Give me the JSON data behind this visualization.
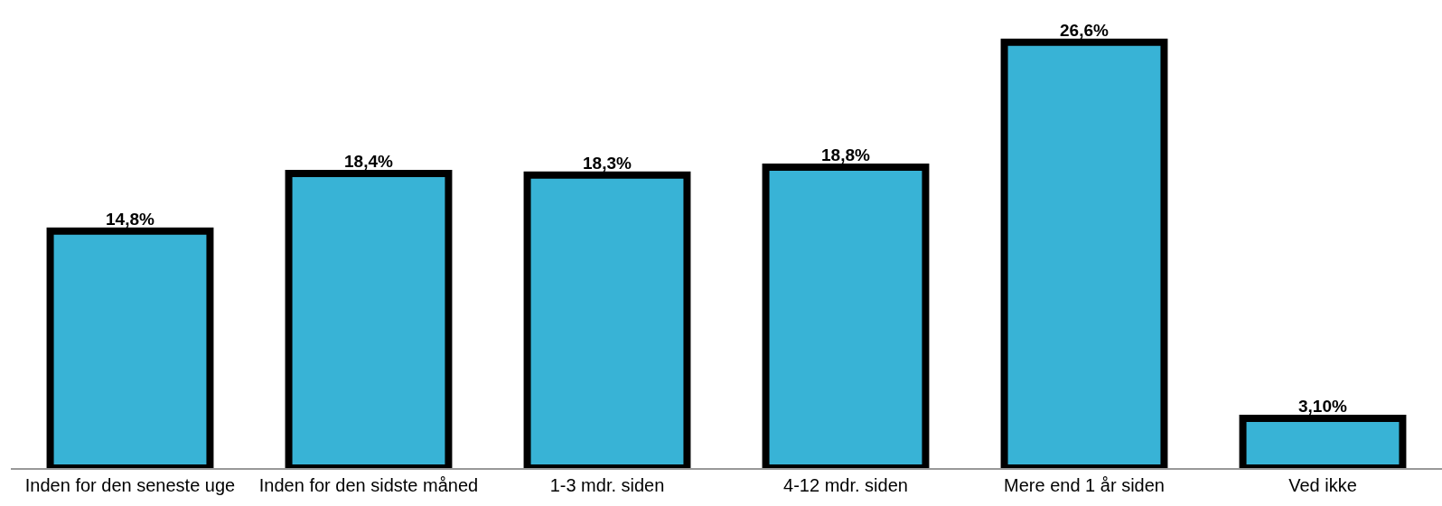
{
  "chart_data": {
    "type": "bar",
    "categories": [
      "Inden for den seneste uge",
      "Inden for den sidste måned",
      "1-3 mdr. siden",
      "4-12 mdr. siden",
      "Mere end 1 år siden",
      "Ved ikke"
    ],
    "values": [
      14.8,
      18.4,
      18.3,
      18.8,
      26.6,
      3.1
    ],
    "value_labels": [
      "14,8%",
      "18,4%",
      "18,3%",
      "18,8%",
      "26,6%",
      "3,10%"
    ],
    "color": "#38b3d6",
    "tick_labels": "x"
  }
}
